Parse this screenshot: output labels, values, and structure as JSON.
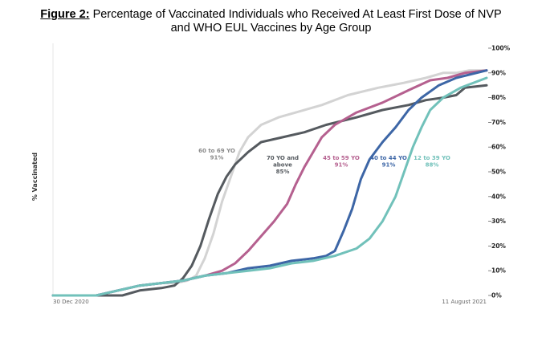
{
  "title": {
    "prefix": "Figure 2:",
    "line1": "Percentage of Vaccinated Individuals who Received At Least First Dose of NVP",
    "line2": "and WHO EUL Vaccines by Age Group"
  },
  "chart_data": {
    "type": "line",
    "title": "Figure 2: Percentage of Vaccinated Individuals who Received At Least First Dose of NVP and WHO EUL Vaccines by Age Group",
    "xlabel": "",
    "ylabel": "% Vaccinated",
    "x_range_labels": [
      "30 Dec 2020",
      "11 August 2021"
    ],
    "x_unit": "fraction of period from 30 Dec 2020 to 11 August 2021",
    "ylim": [
      0,
      100
    ],
    "y_ticks": [
      0,
      10,
      20,
      30,
      40,
      50,
      60,
      70,
      80,
      90,
      100
    ],
    "y_tick_labels": [
      "0%",
      "10%",
      "20%",
      "30%",
      "40%",
      "50%",
      "60%",
      "70%",
      "80%",
      "90%",
      "100%"
    ],
    "y_axis_side": "right",
    "grid": "vertical line at start only",
    "series": [
      {
        "name": "60 to 69 YO",
        "label_lines": [
          "60 to 69 YO",
          "91%"
        ],
        "final": "91%",
        "color": "#d3d3d3",
        "points": [
          [
            0,
            0
          ],
          [
            0.1,
            0
          ],
          [
            0.15,
            2
          ],
          [
            0.2,
            4
          ],
          [
            0.25,
            5
          ],
          [
            0.28,
            5
          ],
          [
            0.31,
            6
          ],
          [
            0.33,
            8
          ],
          [
            0.35,
            15
          ],
          [
            0.37,
            25
          ],
          [
            0.39,
            38
          ],
          [
            0.41,
            48
          ],
          [
            0.43,
            58
          ],
          [
            0.45,
            64
          ],
          [
            0.48,
            69
          ],
          [
            0.52,
            72
          ],
          [
            0.56,
            74
          ],
          [
            0.62,
            77
          ],
          [
            0.68,
            81
          ],
          [
            0.75,
            84
          ],
          [
            0.81,
            86
          ],
          [
            0.86,
            88
          ],
          [
            0.9,
            90
          ],
          [
            0.93,
            90
          ],
          [
            0.96,
            91
          ],
          [
            1,
            91
          ]
        ]
      },
      {
        "name": "70 YO and above",
        "label_lines": [
          "70 YO and",
          "above",
          "85%"
        ],
        "final": "85%",
        "color": "#555a5f",
        "points": [
          [
            0,
            0
          ],
          [
            0.1,
            0
          ],
          [
            0.16,
            0
          ],
          [
            0.2,
            2
          ],
          [
            0.25,
            3
          ],
          [
            0.28,
            4
          ],
          [
            0.3,
            7
          ],
          [
            0.32,
            12
          ],
          [
            0.34,
            20
          ],
          [
            0.36,
            31
          ],
          [
            0.38,
            41
          ],
          [
            0.4,
            48
          ],
          [
            0.42,
            53
          ],
          [
            0.45,
            58
          ],
          [
            0.48,
            62
          ],
          [
            0.53,
            64
          ],
          [
            0.58,
            66
          ],
          [
            0.63,
            69
          ],
          [
            0.7,
            72
          ],
          [
            0.76,
            75
          ],
          [
            0.82,
            77
          ],
          [
            0.86,
            79
          ],
          [
            0.9,
            80
          ],
          [
            0.93,
            81
          ],
          [
            0.95,
            84
          ],
          [
            1,
            85
          ]
        ]
      },
      {
        "name": "45 to 59 YO",
        "label_lines": [
          "45 to 59 YO",
          "91%"
        ],
        "final": "91%",
        "color": "#b5608f",
        "points": [
          [
            0,
            0
          ],
          [
            0.1,
            0
          ],
          [
            0.15,
            2
          ],
          [
            0.2,
            4
          ],
          [
            0.25,
            5
          ],
          [
            0.3,
            6
          ],
          [
            0.35,
            8
          ],
          [
            0.39,
            10
          ],
          [
            0.42,
            13
          ],
          [
            0.45,
            18
          ],
          [
            0.48,
            24
          ],
          [
            0.51,
            30
          ],
          [
            0.54,
            37
          ],
          [
            0.56,
            45
          ],
          [
            0.58,
            52
          ],
          [
            0.6,
            58
          ],
          [
            0.62,
            64
          ],
          [
            0.65,
            69
          ],
          [
            0.7,
            74
          ],
          [
            0.76,
            78
          ],
          [
            0.82,
            83
          ],
          [
            0.87,
            87
          ],
          [
            0.91,
            88
          ],
          [
            0.95,
            90
          ],
          [
            1,
            91
          ]
        ]
      },
      {
        "name": "40 to 44 YO",
        "label_lines": [
          "40 to 44 YO",
          "91%"
        ],
        "final": "91%",
        "color": "#3d66a6",
        "points": [
          [
            0,
            0
          ],
          [
            0.1,
            0
          ],
          [
            0.15,
            2
          ],
          [
            0.2,
            4
          ],
          [
            0.25,
            5
          ],
          [
            0.3,
            6
          ],
          [
            0.35,
            8
          ],
          [
            0.4,
            9
          ],
          [
            0.45,
            11
          ],
          [
            0.5,
            12
          ],
          [
            0.55,
            14
          ],
          [
            0.6,
            15
          ],
          [
            0.63,
            16
          ],
          [
            0.65,
            18
          ],
          [
            0.67,
            26
          ],
          [
            0.69,
            35
          ],
          [
            0.71,
            47
          ],
          [
            0.73,
            55
          ],
          [
            0.76,
            62
          ],
          [
            0.79,
            68
          ],
          [
            0.82,
            75
          ],
          [
            0.85,
            80
          ],
          [
            0.89,
            85
          ],
          [
            0.93,
            88
          ],
          [
            1,
            91
          ]
        ]
      },
      {
        "name": "12 to 39 YO",
        "label_lines": [
          "12 to 39 YO",
          "88%"
        ],
        "final": "88%",
        "color": "#71c1ba",
        "points": [
          [
            0,
            0
          ],
          [
            0.1,
            0
          ],
          [
            0.15,
            2
          ],
          [
            0.2,
            4
          ],
          [
            0.25,
            5
          ],
          [
            0.3,
            6
          ],
          [
            0.35,
            8
          ],
          [
            0.4,
            9
          ],
          [
            0.45,
            10
          ],
          [
            0.5,
            11
          ],
          [
            0.55,
            13
          ],
          [
            0.6,
            14
          ],
          [
            0.65,
            16
          ],
          [
            0.7,
            19
          ],
          [
            0.73,
            23
          ],
          [
            0.76,
            30
          ],
          [
            0.79,
            40
          ],
          [
            0.81,
            50
          ],
          [
            0.83,
            60
          ],
          [
            0.85,
            68
          ],
          [
            0.87,
            75
          ],
          [
            0.9,
            80
          ],
          [
            0.94,
            84
          ],
          [
            1,
            88
          ]
        ]
      }
    ]
  }
}
